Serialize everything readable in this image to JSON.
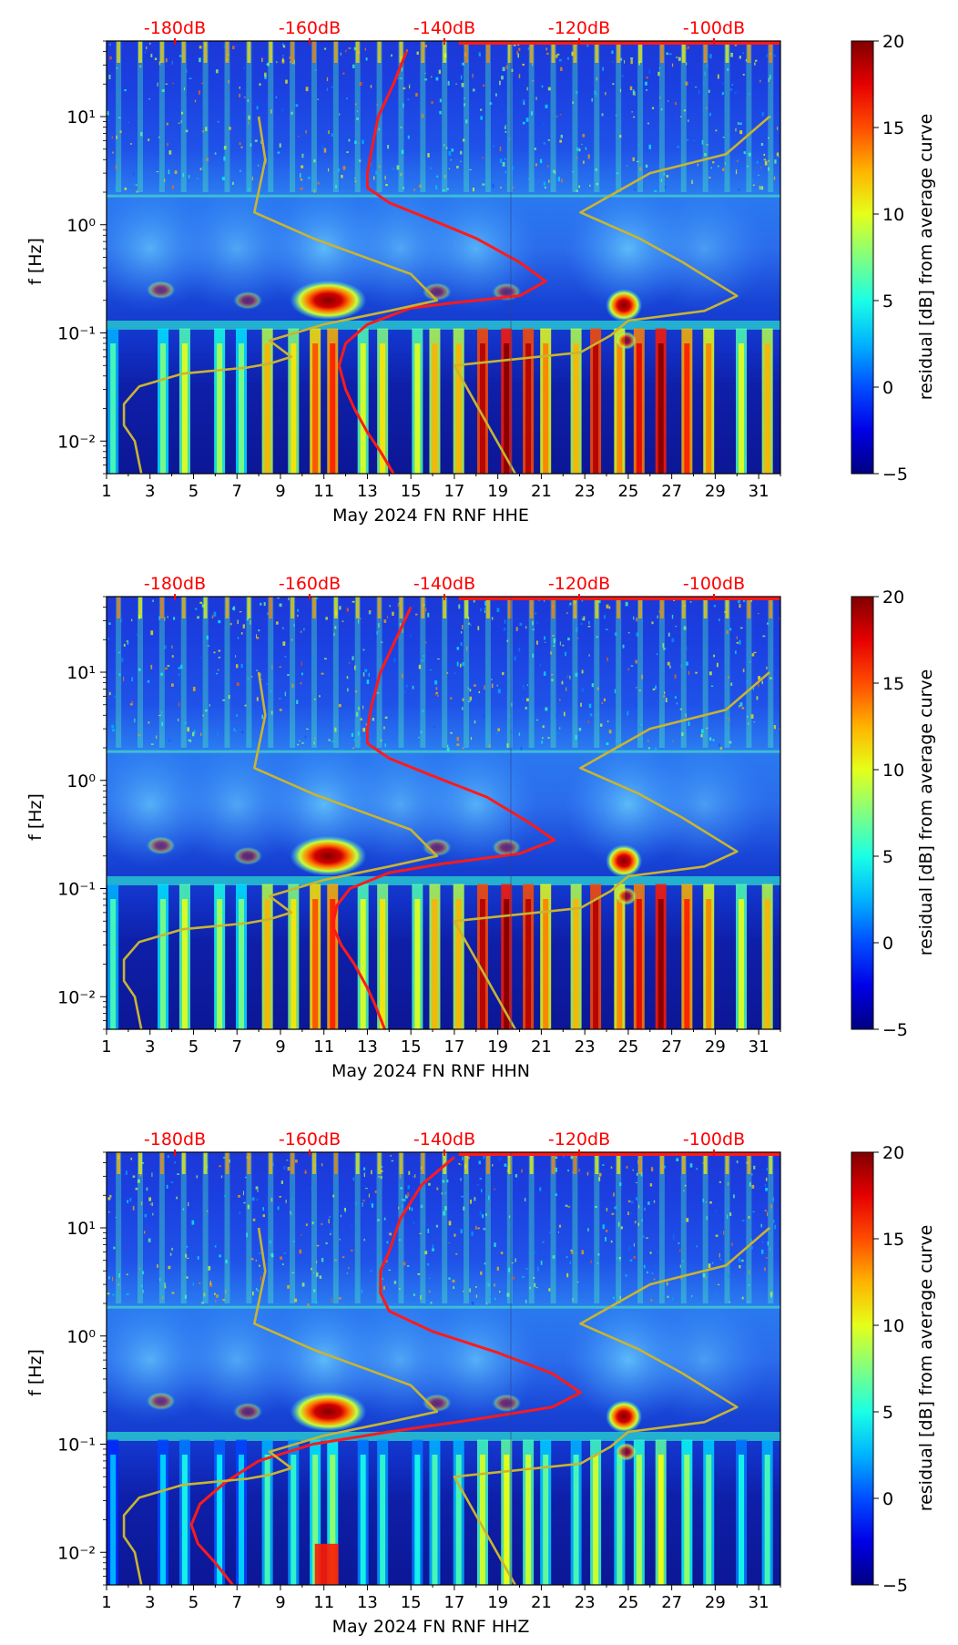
{
  "chart_data": [
    {
      "type": "heatmap",
      "title": "",
      "xlabel": "May 2024 FN RNF  HHE",
      "ylabel": "f [Hz]",
      "x_ticks": [
        "1",
        "3",
        "5",
        "7",
        "9",
        "11",
        "13",
        "15",
        "17",
        "19",
        "21",
        "23",
        "25",
        "27",
        "29",
        "31"
      ],
      "xlim": [
        1,
        32
      ],
      "y_scale": "log",
      "y_ticks": [
        {
          "value": 10,
          "label": "10¹"
        },
        {
          "value": 1,
          "label": "10⁰"
        },
        {
          "value": 0.1,
          "label": "10⁻¹"
        },
        {
          "value": 0.01,
          "label": "10⁻²"
        }
      ],
      "ylim": [
        0.005,
        50
      ],
      "top_axis_labels": [
        "-180dB",
        "-160dB",
        "-140dB",
        "-120dB",
        "-100dB"
      ],
      "top_axis_color": "#ff0000",
      "colorbar": {
        "label": "residual [dB] from average curve",
        "ticks": [
          20,
          15,
          10,
          5,
          0,
          -5
        ],
        "range": [
          -5,
          20
        ],
        "colormap": "jet"
      },
      "series": [
        {
          "color": "#ff1a1a",
          "points": [
            [
              14.8,
              40
            ],
            [
              14.2,
              20
            ],
            [
              13.5,
              10
            ],
            [
              13.2,
              5
            ],
            [
              13.0,
              3
            ],
            [
              13.0,
              2.2
            ],
            [
              14.0,
              1.6
            ],
            [
              16.0,
              1.1
            ],
            [
              18.0,
              0.75
            ],
            [
              20.0,
              0.45
            ],
            [
              21.2,
              0.3
            ],
            [
              20.0,
              0.22
            ],
            [
              17.0,
              0.19
            ],
            [
              15.0,
              0.17
            ],
            [
              13.0,
              0.12
            ],
            [
              12.0,
              0.08
            ],
            [
              11.7,
              0.05
            ],
            [
              12.0,
              0.03
            ],
            [
              12.4,
              0.02
            ],
            [
              13.0,
              0.012
            ],
            [
              13.6,
              0.008
            ],
            [
              14.2,
              0.005
            ]
          ]
        },
        {
          "color": "#c8b432",
          "points": [
            [
              2.6,
              0.005
            ],
            [
              2.3,
              0.01
            ],
            [
              1.8,
              0.014
            ],
            [
              1.8,
              0.022
            ],
            [
              2.5,
              0.032
            ],
            [
              4.5,
              0.042
            ],
            [
              7.5,
              0.048
            ],
            [
              8.5,
              0.052
            ],
            [
              9.5,
              0.06
            ],
            [
              8.5,
              0.085
            ],
            [
              11,
              0.12
            ],
            [
              14,
              0.16
            ],
            [
              16.2,
              0.2
            ],
            [
              15,
              0.35
            ],
            [
              10.5,
              0.75
            ],
            [
              7.8,
              1.3
            ],
            [
              8.3,
              4
            ],
            [
              8.0,
              10
            ]
          ]
        },
        {
          "color": "#c8b432",
          "points": [
            [
              19.8,
              0.005
            ],
            [
              17.0,
              0.05
            ],
            [
              22.8,
              0.066
            ],
            [
              24.2,
              0.095
            ],
            [
              25.0,
              0.13
            ],
            [
              28.5,
              0.16
            ],
            [
              30,
              0.22
            ],
            [
              27.5,
              0.45
            ],
            [
              25.5,
              0.75
            ],
            [
              22.8,
              1.3
            ],
            [
              26,
              3
            ],
            [
              29.5,
              4.5
            ],
            [
              31.5,
              10
            ]
          ]
        }
      ]
    },
    {
      "type": "heatmap",
      "title": "",
      "xlabel": "May 2024 FN RNF  HHN",
      "ylabel": "f [Hz]",
      "x_ticks": [
        "1",
        "3",
        "5",
        "7",
        "9",
        "11",
        "13",
        "15",
        "17",
        "19",
        "21",
        "23",
        "25",
        "27",
        "29",
        "31"
      ],
      "xlim": [
        1,
        32
      ],
      "y_scale": "log",
      "y_ticks": [
        {
          "value": 10,
          "label": "10¹"
        },
        {
          "value": 1,
          "label": "10⁰"
        },
        {
          "value": 0.1,
          "label": "10⁻¹"
        },
        {
          "value": 0.01,
          "label": "10⁻²"
        }
      ],
      "ylim": [
        0.005,
        50
      ],
      "top_axis_labels": [
        "-180dB",
        "-160dB",
        "-140dB",
        "-120dB",
        "-100dB"
      ],
      "top_axis_color": "#ff0000",
      "colorbar": {
        "label": "residual [dB] from average curve",
        "ticks": [
          20,
          15,
          10,
          5,
          0,
          -5
        ],
        "range": [
          -5,
          20
        ],
        "colormap": "jet"
      },
      "series": [
        {
          "color": "#ff1a1a",
          "points": [
            [
              15.0,
              40
            ],
            [
              14.3,
              20
            ],
            [
              13.6,
              10
            ],
            [
              13.2,
              5
            ],
            [
              13.0,
              3
            ],
            [
              13.0,
              2.2
            ],
            [
              14.0,
              1.6
            ],
            [
              16.0,
              1.1
            ],
            [
              18.5,
              0.7
            ],
            [
              20.5,
              0.4
            ],
            [
              21.6,
              0.28
            ],
            [
              20.0,
              0.21
            ],
            [
              16.5,
              0.17
            ],
            [
              14,
              0.14
            ],
            [
              12.2,
              0.1
            ],
            [
              11.6,
              0.07
            ],
            [
              11.4,
              0.045
            ],
            [
              11.8,
              0.03
            ],
            [
              12.4,
              0.02
            ],
            [
              13.0,
              0.012
            ],
            [
              13.4,
              0.008
            ],
            [
              13.8,
              0.005
            ]
          ]
        },
        {
          "color": "#c8b432",
          "points": [
            [
              2.6,
              0.005
            ],
            [
              2.3,
              0.01
            ],
            [
              1.8,
              0.014
            ],
            [
              1.8,
              0.022
            ],
            [
              2.5,
              0.032
            ],
            [
              4.5,
              0.042
            ],
            [
              7.5,
              0.048
            ],
            [
              8.5,
              0.052
            ],
            [
              9.5,
              0.06
            ],
            [
              8.5,
              0.085
            ],
            [
              11,
              0.12
            ],
            [
              14,
              0.16
            ],
            [
              16.2,
              0.2
            ],
            [
              15,
              0.35
            ],
            [
              10.5,
              0.75
            ],
            [
              7.8,
              1.3
            ],
            [
              8.3,
              4
            ],
            [
              8.0,
              10
            ]
          ]
        },
        {
          "color": "#c8b432",
          "points": [
            [
              19.8,
              0.005
            ],
            [
              17.0,
              0.05
            ],
            [
              22.8,
              0.066
            ],
            [
              24.2,
              0.095
            ],
            [
              25.0,
              0.13
            ],
            [
              28.5,
              0.16
            ],
            [
              30,
              0.22
            ],
            [
              27.5,
              0.45
            ],
            [
              25.5,
              0.75
            ],
            [
              22.8,
              1.3
            ],
            [
              26,
              3
            ],
            [
              29.5,
              4.5
            ],
            [
              31.5,
              10
            ]
          ]
        }
      ]
    },
    {
      "type": "heatmap",
      "title": "",
      "xlabel": "May 2024 FN RNF  HHZ",
      "ylabel": "f [Hz]",
      "x_ticks": [
        "1",
        "3",
        "5",
        "7",
        "9",
        "11",
        "13",
        "15",
        "17",
        "19",
        "21",
        "23",
        "25",
        "27",
        "29",
        "31"
      ],
      "xlim": [
        1,
        32
      ],
      "y_scale": "log",
      "y_ticks": [
        {
          "value": 10,
          "label": "10¹"
        },
        {
          "value": 1,
          "label": "10⁰"
        },
        {
          "value": 0.1,
          "label": "10⁻¹"
        },
        {
          "value": 0.01,
          "label": "10⁻²"
        }
      ],
      "ylim": [
        0.005,
        50
      ],
      "top_axis_labels": [
        "-180dB",
        "-160dB",
        "-140dB",
        "-120dB",
        "-100dB"
      ],
      "top_axis_color": "#ff0000",
      "colorbar": {
        "label": "residual [dB] from average curve",
        "ticks": [
          20,
          15,
          10,
          5,
          0,
          -5
        ],
        "range": [
          -5,
          20
        ],
        "colormap": "jet"
      },
      "series": [
        {
          "color": "#ff1a1a",
          "points": [
            [
              17.0,
              45
            ],
            [
              15.5,
              25
            ],
            [
              14.5,
              12
            ],
            [
              14.0,
              6
            ],
            [
              13.6,
              4
            ],
            [
              13.6,
              2.5
            ],
            [
              14.0,
              1.7
            ],
            [
              16.0,
              1.1
            ],
            [
              19.0,
              0.7
            ],
            [
              21.5,
              0.45
            ],
            [
              22.8,
              0.3
            ],
            [
              21.5,
              0.22
            ],
            [
              18,
              0.17
            ],
            [
              14,
              0.13
            ],
            [
              10.5,
              0.1
            ],
            [
              8,
              0.07
            ],
            [
              6.5,
              0.045
            ],
            [
              5.3,
              0.028
            ],
            [
              4.9,
              0.018
            ],
            [
              5.2,
              0.012
            ],
            [
              6.0,
              0.008
            ],
            [
              6.8,
              0.005
            ]
          ]
        },
        {
          "color": "#c8b432",
          "points": [
            [
              2.6,
              0.005
            ],
            [
              2.3,
              0.01
            ],
            [
              1.8,
              0.014
            ],
            [
              1.8,
              0.022
            ],
            [
              2.5,
              0.032
            ],
            [
              4.5,
              0.042
            ],
            [
              7.5,
              0.048
            ],
            [
              8.5,
              0.052
            ],
            [
              9.5,
              0.06
            ],
            [
              8.5,
              0.085
            ],
            [
              11,
              0.12
            ],
            [
              14,
              0.16
            ],
            [
              16.2,
              0.2
            ],
            [
              15,
              0.35
            ],
            [
              10.5,
              0.75
            ],
            [
              7.8,
              1.3
            ],
            [
              8.3,
              4
            ],
            [
              8.0,
              10
            ]
          ]
        },
        {
          "color": "#c8b432",
          "points": [
            [
              19.8,
              0.005
            ],
            [
              17.0,
              0.05
            ],
            [
              22.8,
              0.066
            ],
            [
              24.2,
              0.095
            ],
            [
              25.0,
              0.13
            ],
            [
              28.5,
              0.16
            ],
            [
              30,
              0.22
            ],
            [
              27.5,
              0.45
            ],
            [
              25.5,
              0.75
            ],
            [
              22.8,
              1.3
            ],
            [
              26,
              3
            ],
            [
              29.5,
              4.5
            ],
            [
              31.5,
              10
            ]
          ]
        }
      ]
    }
  ]
}
